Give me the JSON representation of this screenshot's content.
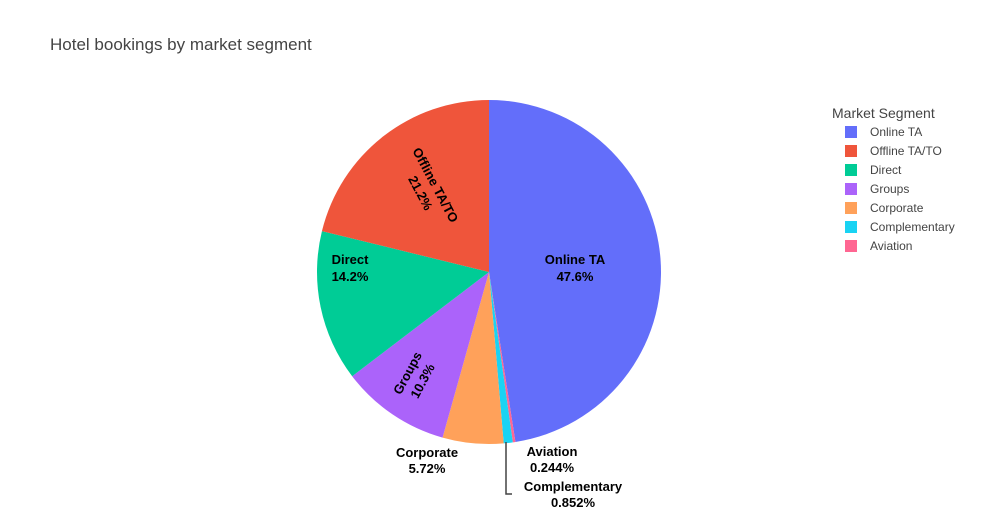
{
  "chart_data": {
    "type": "pie",
    "title": "Hotel bookings by market segment",
    "legend_title": "Market Segment",
    "legend_position": "top-right",
    "direction": "clockwise",
    "start_angle_deg": 0,
    "slices": [
      {
        "label": "Online TA",
        "value": 47.6,
        "percent_text": "47.6%",
        "color": "#636efa",
        "label_mode": "inside"
      },
      {
        "label": "Aviation",
        "value": 0.244,
        "percent_text": "0.244%",
        "color": "#ff6692",
        "label_mode": "outside"
      },
      {
        "label": "Complementary",
        "value": 0.852,
        "percent_text": "0.852%",
        "color": "#19d3f3",
        "label_mode": "outside"
      },
      {
        "label": "Corporate",
        "value": 5.72,
        "percent_text": "5.72%",
        "color": "#ffa15a",
        "label_mode": "outside"
      },
      {
        "label": "Groups",
        "value": 10.3,
        "percent_text": "10.3%",
        "color": "#ab63fa",
        "label_mode": "inside-rotated"
      },
      {
        "label": "Direct",
        "value": 14.2,
        "percent_text": "14.2%",
        "color": "#00cc96",
        "label_mode": "inside"
      },
      {
        "label": "Offline TA/TO",
        "value": 21.2,
        "percent_text": "21.2%",
        "color": "#ef553b",
        "label_mode": "inside-rotated"
      }
    ],
    "legend_order": [
      "Online TA",
      "Offline TA/TO",
      "Direct",
      "Groups",
      "Corporate",
      "Complementary",
      "Aviation"
    ]
  }
}
